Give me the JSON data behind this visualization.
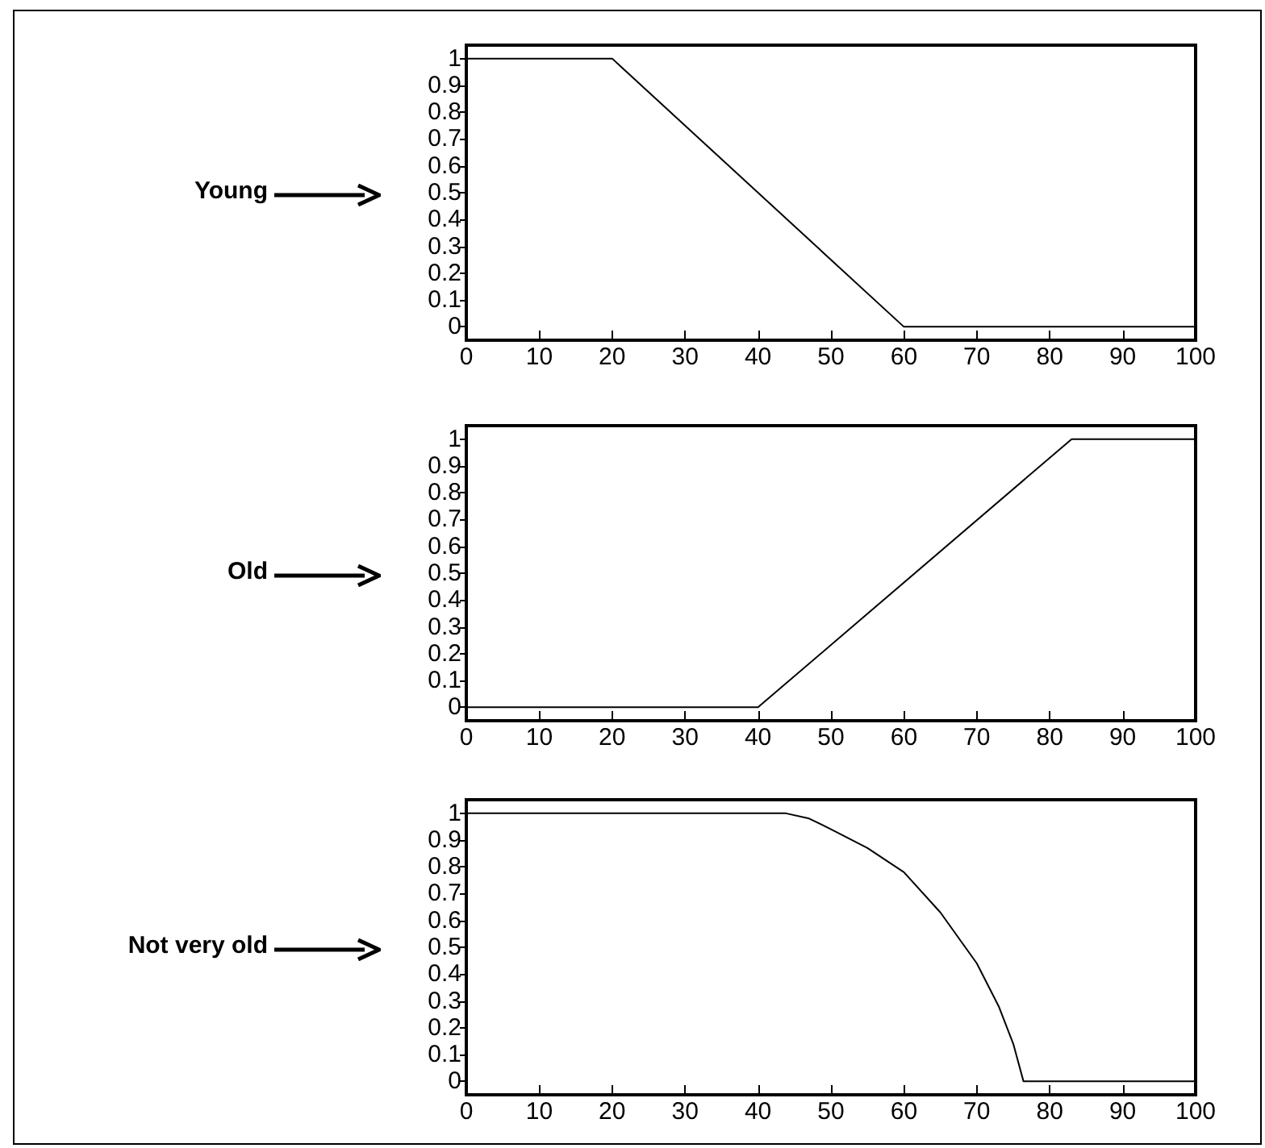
{
  "chart_data": [
    {
      "type": "line",
      "ylabel": "Young",
      "x": [
        0,
        20,
        60,
        100
      ],
      "values": [
        1,
        1,
        0,
        0
      ],
      "color": "#000000",
      "xlim": [
        0,
        100
      ],
      "xticks": [
        0,
        10,
        20,
        30,
        40,
        50,
        60,
        70,
        80,
        90,
        100
      ],
      "ylim": [
        -0.05,
        1.05
      ],
      "yticks": [
        0,
        0.1,
        0.2,
        0.3,
        0.4,
        0.5,
        0.6,
        0.7,
        0.8,
        0.9,
        1
      ],
      "marker": "none",
      "line_style": "solid"
    },
    {
      "type": "line",
      "ylabel": "Old",
      "x": [
        0,
        40,
        83,
        100
      ],
      "values": [
        0,
        0,
        1,
        1
      ],
      "color": "#000000",
      "xlim": [
        0,
        100
      ],
      "xticks": [
        0,
        10,
        20,
        30,
        40,
        50,
        60,
        70,
        80,
        90,
        100
      ],
      "ylim": [
        -0.05,
        1.05
      ],
      "yticks": [
        0,
        0.1,
        0.2,
        0.3,
        0.4,
        0.5,
        0.6,
        0.7,
        0.8,
        0.9,
        1
      ],
      "marker": "none",
      "line_style": "solid"
    },
    {
      "type": "line",
      "ylabel": "Not very old",
      "x": [
        0,
        43.7,
        47,
        50,
        55,
        60,
        65,
        70,
        73,
        75,
        76.4,
        100
      ],
      "values": [
        1,
        1,
        0.98,
        0.94,
        0.87,
        0.78,
        0.63,
        0.44,
        0.28,
        0.14,
        0,
        0
      ],
      "color": "#000000",
      "xlim": [
        0,
        100
      ],
      "xticks": [
        0,
        10,
        20,
        30,
        40,
        50,
        60,
        70,
        80,
        90,
        100
      ],
      "ylim": [
        -0.05,
        1.05
      ],
      "yticks": [
        0,
        0.1,
        0.2,
        0.3,
        0.4,
        0.5,
        0.6,
        0.7,
        0.8,
        0.9,
        1
      ],
      "marker": "none",
      "line_style": "solid"
    }
  ]
}
